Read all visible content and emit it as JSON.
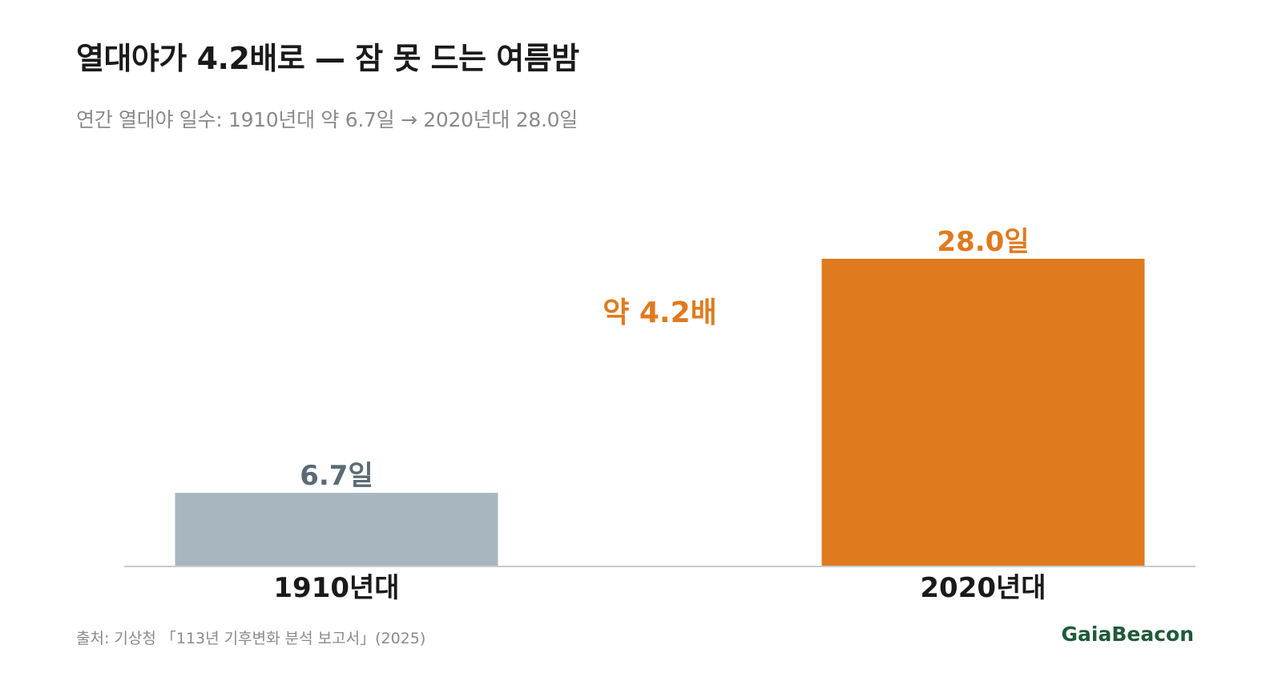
{
  "title": "열대야가 4.2배로 — 잠 못 드는 여름밤",
  "subtitle": "연간 열대야 일수: 1910년대 약 6.7일 → 2020년대 28.0일",
  "source": "출처: 기상청 「113년 기후변화 분석 보고서」(2025)",
  "brand": "GaiaBeacon",
  "colors": {
    "bar_1910": "#a8b6bf",
    "bar_2020": "#e07a1f",
    "label_1910": "#5a6b76",
    "label_2020": "#e07a1f",
    "ratio": "#e07a1f",
    "brand": "#1f5a3a"
  },
  "chart_data": {
    "type": "bar",
    "categories": [
      "1910년대",
      "2020년대"
    ],
    "values": [
      6.7,
      28.0
    ],
    "value_labels": [
      "6.7일",
      "28.0일"
    ],
    "annotation": "약 4.2배",
    "ylim": [
      0,
      35
    ],
    "grid": false,
    "legend": "none"
  }
}
